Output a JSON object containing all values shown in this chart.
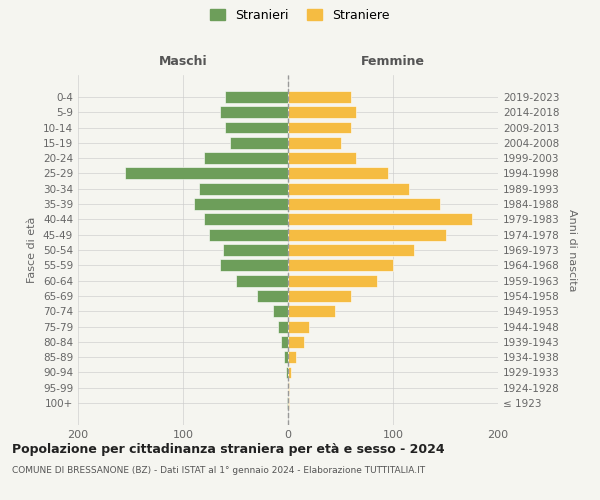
{
  "age_groups": [
    "100+",
    "95-99",
    "90-94",
    "85-89",
    "80-84",
    "75-79",
    "70-74",
    "65-69",
    "60-64",
    "55-59",
    "50-54",
    "45-49",
    "40-44",
    "35-39",
    "30-34",
    "25-29",
    "20-24",
    "15-19",
    "10-14",
    "5-9",
    "0-4"
  ],
  "birth_years": [
    "≤ 1923",
    "1924-1928",
    "1929-1933",
    "1934-1938",
    "1939-1943",
    "1944-1948",
    "1949-1953",
    "1954-1958",
    "1959-1963",
    "1964-1968",
    "1969-1973",
    "1974-1978",
    "1979-1983",
    "1984-1988",
    "1989-1993",
    "1994-1998",
    "1999-2003",
    "2004-2008",
    "2009-2013",
    "2014-2018",
    "2019-2023"
  ],
  "males": [
    1,
    0,
    2,
    4,
    7,
    10,
    14,
    30,
    50,
    65,
    62,
    75,
    80,
    90,
    85,
    155,
    80,
    55,
    60,
    65,
    60
  ],
  "females": [
    1,
    1,
    3,
    8,
    15,
    20,
    45,
    60,
    85,
    100,
    120,
    150,
    175,
    145,
    115,
    95,
    65,
    50,
    60,
    65,
    60
  ],
  "male_color": "#6d9e5a",
  "female_color": "#f5bc42",
  "background_color": "#f5f5f0",
  "grid_color": "#cccccc",
  "title": "Popolazione per cittadinanza straniera per età e sesso - 2024",
  "subtitle": "COMUNE DI BRESSANONE (BZ) - Dati ISTAT al 1° gennaio 2024 - Elaborazione TUTTITALIA.IT",
  "xlabel_left": "Maschi",
  "xlabel_right": "Femmine",
  "ylabel_left": "Fasce di età",
  "ylabel_right": "Anni di nascita",
  "legend_male": "Stranieri",
  "legend_female": "Straniere",
  "xlim": 200
}
